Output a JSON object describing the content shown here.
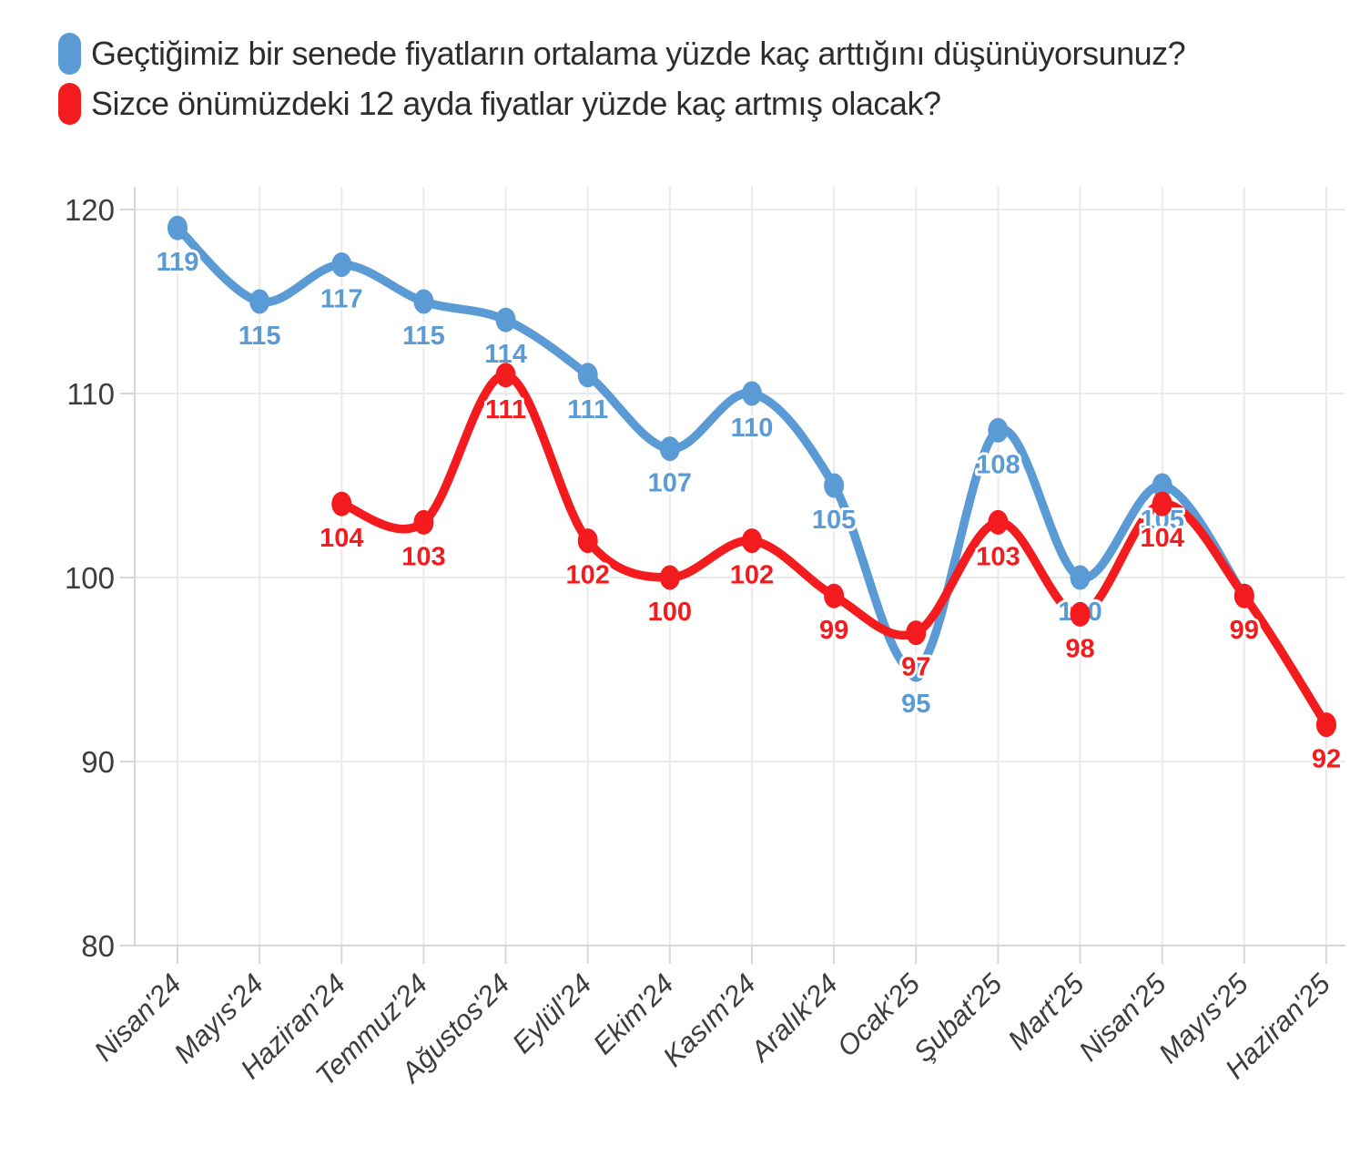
{
  "legend": {
    "items": [
      {
        "label": "Geçtiğimiz bir senede fiyatların ortalama yüzde kaç arttığını düşünüyorsunuz?",
        "color": "#5B9BD5"
      },
      {
        "label": "Sizce önümüzdeki 12 ayda fiyatlar yüzde kaç artmış olacak?",
        "color": "#F41B1E"
      }
    ]
  },
  "chart_data": {
    "type": "line",
    "categories": [
      "Nisan'24",
      "Mayıs'24",
      "Haziran'24",
      "Temmuz'24",
      "Ağustos'24",
      "Eylül'24",
      "Ekim'24",
      "Kasım'24",
      "Aralık'24",
      "Ocak'25",
      "Şubat'25",
      "Mart'25",
      "Nisan'25",
      "Mayıs'25",
      "Haziran'25"
    ],
    "series": [
      {
        "name": "Geçtiğimiz bir senede fiyatların ortalama yüzde kaç arttığını düşünüyorsunuz?",
        "color": "#5B9BD5",
        "values": [
          119,
          115,
          117,
          115,
          114,
          111,
          107,
          110,
          105,
          95,
          108,
          100,
          105,
          99,
          null
        ],
        "hidden_labels": [
          13
        ]
      },
      {
        "name": "Sizce önümüzdeki 12 ayda fiyatlar yüzde kaç artmış olacak?",
        "color": "#F41B1E",
        "values": [
          null,
          null,
          104,
          103,
          111,
          102,
          100,
          102,
          99,
          97,
          103,
          98,
          104,
          99,
          92
        ],
        "hidden_labels": []
      }
    ],
    "ylim": [
      80,
      120
    ],
    "yticks": [
      120,
      110,
      100,
      90,
      80
    ],
    "grid": true,
    "legend_position": "top-left",
    "smooth": true,
    "grid_color": "#eaeaea",
    "axis_color": "#d7d7d7",
    "tick_label_color": "#3d3d3d"
  }
}
